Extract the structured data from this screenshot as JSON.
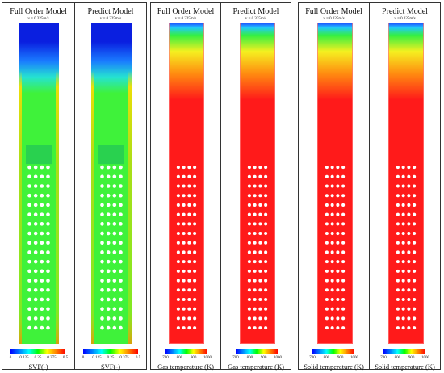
{
  "panels": [
    {
      "title": "Full Order Model",
      "velocity": "v = 0.325m/s",
      "variable": "SVF(-)",
      "field": "svf",
      "ticks": [
        "0",
        "0.125",
        "0.25",
        "0.375",
        "0.5"
      ]
    },
    {
      "title": "Predict Model",
      "velocity": "v = 0.325m/s",
      "variable": "SVF(-)",
      "field": "svf",
      "ticks": [
        "0",
        "0.125",
        "0.25",
        "0.375",
        "0.5"
      ]
    },
    {
      "title": "Full Order Model",
      "velocity": "v = 0.325m/s",
      "variable": "Gas  temperature (K)",
      "field": "temp",
      "ticks": [
        "700",
        "800",
        "900",
        "1000"
      ]
    },
    {
      "title": "Predict Model",
      "velocity": "v = 0.325m/s",
      "variable": "Gas  temperature (K)",
      "field": "temp",
      "ticks": [
        "700",
        "800",
        "900",
        "1000"
      ]
    },
    {
      "title": "Full Order Model",
      "velocity": "v = 0.325m/s",
      "variable": "Solid  temperature (K)",
      "field": "temp",
      "ticks": [
        "700",
        "800",
        "900",
        "1000"
      ]
    },
    {
      "title": "Predict Model",
      "velocity": "v = 0.325m/s",
      "variable": "Solid  temperature (K)",
      "field": "temp",
      "ticks": [
        "700",
        "800",
        "900",
        "1000"
      ]
    }
  ],
  "colors": {
    "rainbow": [
      "#0000ff",
      "#0080ff",
      "#00ffff",
      "#00ff00",
      "#ffff00",
      "#ff8000",
      "#ff0000"
    ],
    "svf_dense": "#0a1fe0",
    "svf_body": "#3ff23a",
    "temp_cold": "#1f40ff",
    "temp_body": "#ff1a1a"
  },
  "tube_grid": {
    "rows": 18,
    "cols": 4
  }
}
